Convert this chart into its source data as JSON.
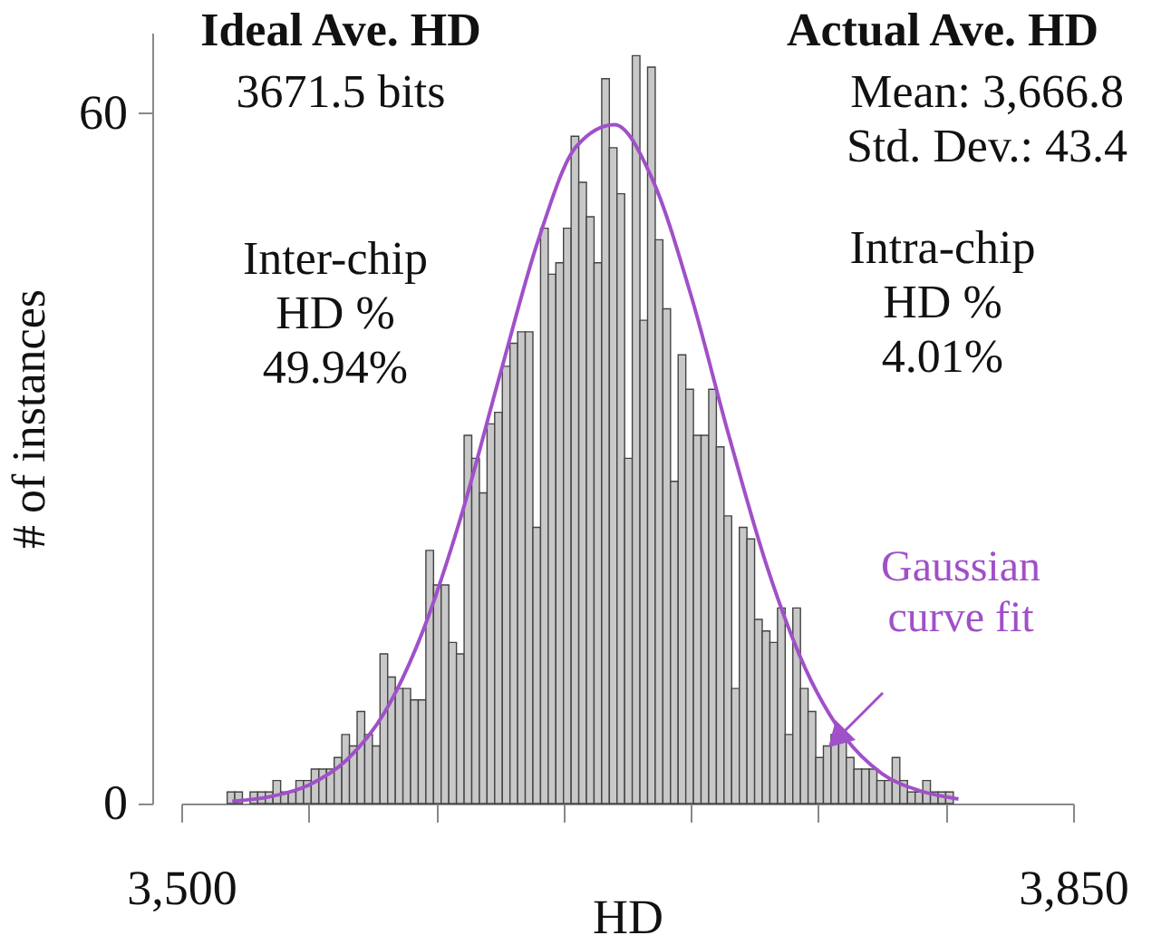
{
  "chart_data": {
    "type": "histogram",
    "xlabel": "HD",
    "ylabel": "# of instances",
    "bins": [
      3518,
      3521,
      3524,
      3527,
      3530,
      3533,
      3536,
      3539,
      3542,
      3545,
      3548,
      3551,
      3554,
      3557,
      3560,
      3563,
      3566,
      3569,
      3572,
      3575,
      3578,
      3581,
      3584,
      3587,
      3590,
      3593,
      3596,
      3599,
      3602,
      3605,
      3608,
      3611,
      3614,
      3617,
      3620,
      3623,
      3626,
      3629,
      3632,
      3635,
      3638,
      3641,
      3644,
      3647,
      3650,
      3653,
      3656,
      3659,
      3662,
      3665,
      3668,
      3671,
      3674,
      3677,
      3680,
      3683,
      3686,
      3689,
      3692,
      3695,
      3698,
      3701,
      3704,
      3707,
      3710,
      3713,
      3716,
      3719,
      3722,
      3725,
      3728,
      3731,
      3734,
      3737,
      3740,
      3743,
      3746,
      3749,
      3752,
      3755,
      3758,
      3761,
      3764,
      3767,
      3770,
      3773,
      3776,
      3779,
      3782,
      3785,
      3788,
      3791,
      3794,
      3797,
      3800,
      3803
    ],
    "values": [
      1,
      1,
      0,
      1,
      1,
      1,
      2,
      1,
      1,
      2,
      2,
      3,
      3,
      3,
      4,
      6,
      5,
      8,
      6,
      5,
      13,
      11,
      10,
      10,
      9,
      9,
      22,
      19,
      19,
      14,
      13,
      32,
      30,
      27,
      33,
      34,
      38,
      40,
      41,
      41,
      24,
      50,
      46,
      47,
      50,
      58,
      54,
      51,
      47,
      63,
      57,
      53,
      30,
      65,
      42,
      64,
      49,
      43,
      28,
      39,
      36,
      32,
      32,
      36,
      31,
      25,
      10,
      24,
      23,
      16,
      15,
      14,
      17,
      6,
      17,
      10,
      8,
      4,
      5,
      6,
      6,
      4,
      3,
      3,
      3,
      2,
      2,
      4,
      2,
      1,
      1,
      2,
      1,
      1,
      1
    ],
    "color": "#c8c8c8",
    "series": [
      {
        "name": "Gaussian curve fit",
        "type": "line",
        "color": "#a050c8",
        "x": [
          3520,
          3535,
          3550,
          3565,
          3580,
          3595,
          3610,
          3625,
          3640,
          3655,
          3670,
          3685,
          3700,
          3715,
          3730,
          3745,
          3760,
          3775,
          3790,
          3805
        ],
        "values": [
          0.2,
          0.6,
          1.6,
          3.8,
          8.0,
          15.1,
          25.1,
          37.2,
          48.9,
          57.1,
          59.0,
          54.2,
          44.2,
          31.9,
          20.5,
          11.7,
          5.9,
          2.6,
          1.1,
          0.4
        ]
      }
    ],
    "xlim": [
      3500,
      3850
    ],
    "xticks": [
      {
        "value": 3500,
        "label": "3,500"
      },
      {
        "value": 3550,
        "label": null
      },
      {
        "value": 3600,
        "label": null
      },
      {
        "value": 3650,
        "label": null
      },
      {
        "value": 3700,
        "label": null
      },
      {
        "value": 3750,
        "label": null
      },
      {
        "value": 3800,
        "label": null
      },
      {
        "value": 3850,
        "label": "3,850"
      }
    ],
    "ylim": [
      0,
      67
    ],
    "yticks": [
      0,
      60
    ],
    "annotations": [
      "Ideal Ave. HD",
      "3671.5 bits",
      "Actual Ave. HD",
      "Mean: 3,666.8",
      "Std. Dev.: 43.4",
      "Inter-chip\nHD %\n49.94%",
      "Intra-chip\nHD %\n4.01%"
    ]
  }
}
